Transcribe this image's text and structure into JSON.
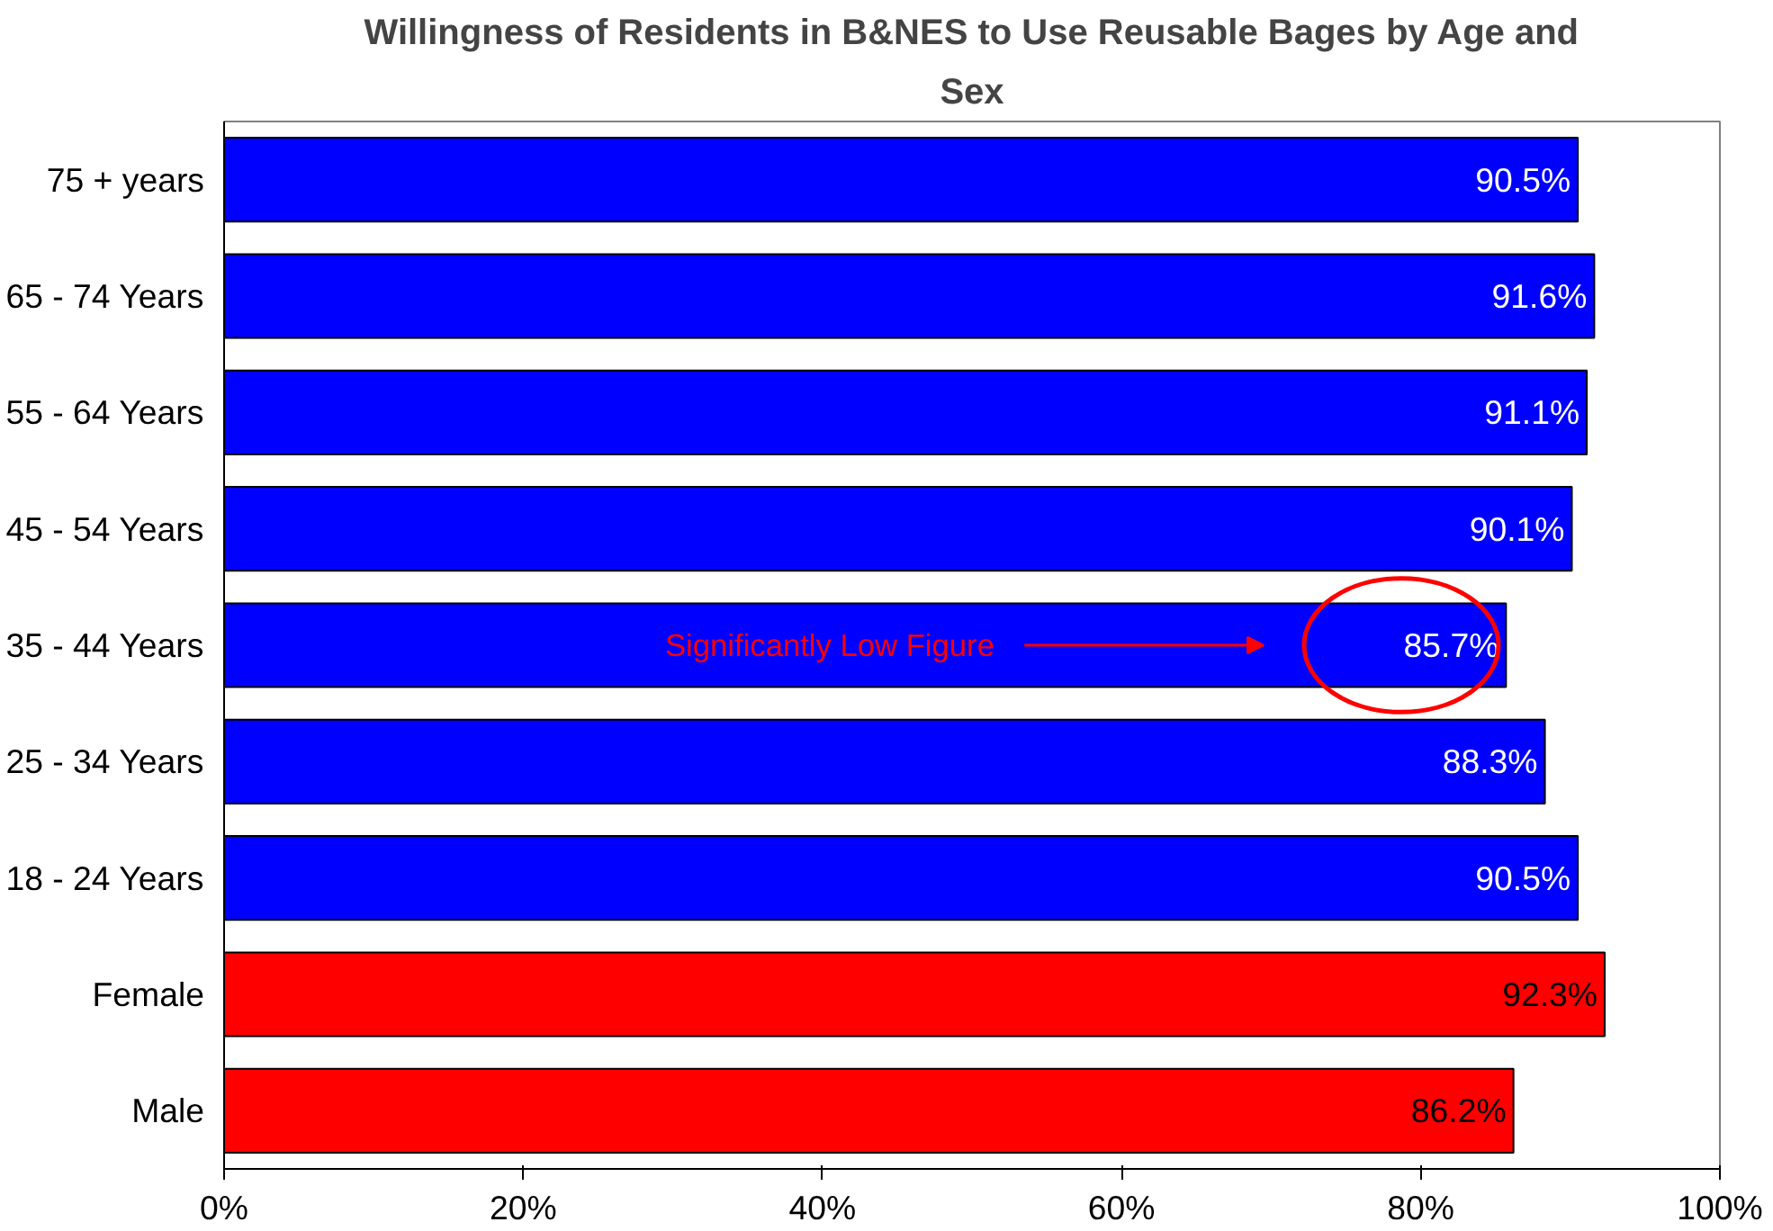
{
  "chart_data": {
    "type": "bar",
    "orientation": "horizontal",
    "title": "Willingness of Residents in B&NES to Use Reusable Bages by Age and Sex",
    "categories": [
      "75 + years",
      "65 - 74 Years",
      "55 - 64 Years",
      "45 - 54 Years",
      "35 - 44 Years",
      "25 - 34 Years",
      "18 - 24 Years",
      "Female",
      "Male"
    ],
    "values": [
      90.5,
      91.6,
      91.1,
      90.1,
      85.7,
      88.3,
      90.5,
      92.3,
      86.2
    ],
    "value_labels": [
      "90.5%",
      "91.6%",
      "91.1%",
      "90.1%",
      "85.7%",
      "88.3%",
      "90.5%",
      "92.3%",
      "86.2%"
    ],
    "colors": [
      "#0000ff",
      "#0000ff",
      "#0000ff",
      "#0000ff",
      "#0000ff",
      "#0000ff",
      "#0000ff",
      "#ff0000",
      "#ff0000"
    ],
    "xlim": [
      0,
      100
    ],
    "xticks": [
      {
        "value": 0,
        "label": "0%"
      },
      {
        "value": 20,
        "label": "20%"
      },
      {
        "value": 40,
        "label": "40%"
      },
      {
        "value": 60,
        "label": "60%"
      },
      {
        "value": 80,
        "label": "80%"
      },
      {
        "value": 100,
        "label": "100%"
      }
    ],
    "annotations": [
      "Significantly Low Figure"
    ],
    "grid": false
  }
}
